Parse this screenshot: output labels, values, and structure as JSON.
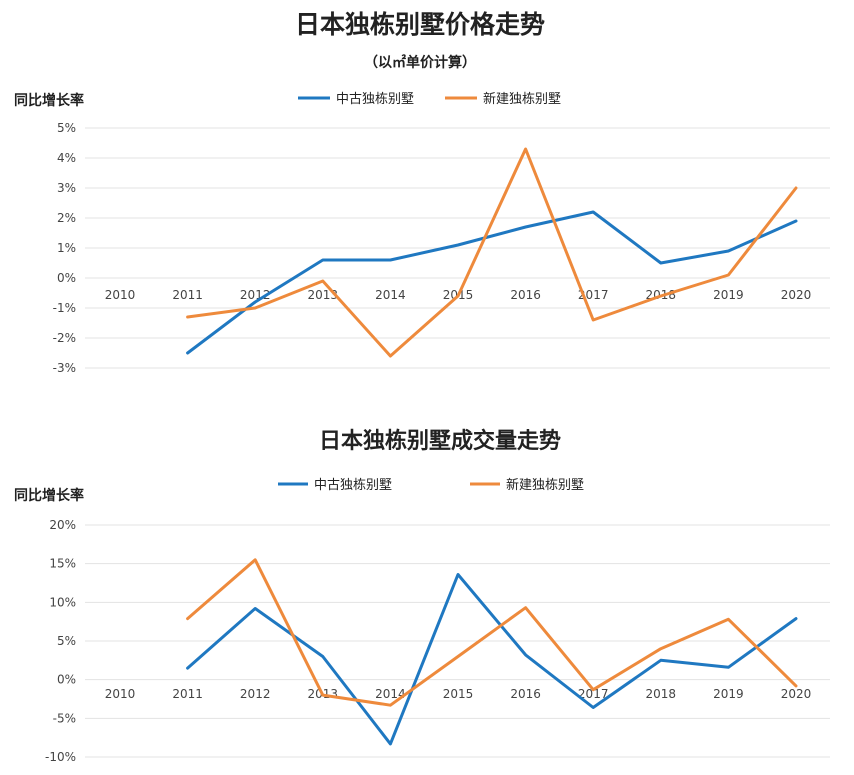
{
  "colors": {
    "series_old": "#1f78c1",
    "series_new": "#ee8a3c",
    "grid": "#e3e3e3",
    "text": "#222222",
    "tick": "#444444"
  },
  "chart_data": [
    {
      "type": "line",
      "title": "日本独栋别墅价格走势",
      "subtitle": "（以㎡单价计算）",
      "ylabel": "同比增长率",
      "xlabel": "",
      "categories": [
        "2010",
        "2011",
        "2012",
        "2013",
        "2014",
        "2015",
        "2016",
        "2017",
        "2018",
        "2019",
        "2020"
      ],
      "yticks": [
        "5%",
        "4%",
        "3%",
        "2%",
        "1%",
        "0%",
        "-1%",
        "-2%",
        "-3%"
      ],
      "ylim": [
        -3,
        5
      ],
      "grid": true,
      "legend": "top-center",
      "series": [
        {
          "name": "中古独栋别墅",
          "values": [
            null,
            -2.5,
            -0.8,
            0.6,
            0.6,
            1.1,
            1.7,
            2.2,
            0.5,
            0.9,
            1.9
          ]
        },
        {
          "name": "新建独栋别墅",
          "values": [
            null,
            -1.3,
            -1.0,
            -0.1,
            -2.6,
            -0.6,
            4.3,
            -1.4,
            -0.6,
            0.1,
            3.0
          ]
        }
      ]
    },
    {
      "type": "line",
      "title": "日本独栋别墅成交量走势",
      "ylabel": "同比增长率",
      "xlabel": "",
      "categories": [
        "2010",
        "2011",
        "2012",
        "2013",
        "2014",
        "2015",
        "2016",
        "2017",
        "2018",
        "2019",
        "2020"
      ],
      "yticks": [
        "20%",
        "15%",
        "10%",
        "5%",
        "0%",
        "-5%",
        "-10%"
      ],
      "ylim": [
        -10,
        20
      ],
      "grid": true,
      "legend": "top-center",
      "series": [
        {
          "name": "中古独栋别墅",
          "values": [
            null,
            1.5,
            9.2,
            3.0,
            -8.3,
            13.6,
            3.2,
            -3.6,
            2.5,
            1.6,
            7.9
          ]
        },
        {
          "name": "新建独栋别墅",
          "values": [
            null,
            7.9,
            15.5,
            -2.0,
            -3.3,
            3.0,
            9.3,
            -1.3,
            4.0,
            7.8,
            -0.8
          ]
        }
      ]
    }
  ]
}
